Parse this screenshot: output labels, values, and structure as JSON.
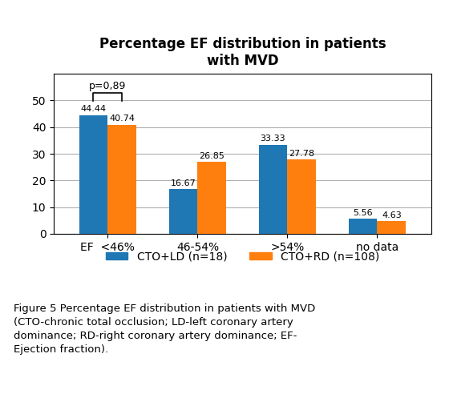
{
  "chart_data": {
    "type": "bar",
    "title": "Percentage EF distribution in patients\nwith MVD",
    "categories": [
      "EF  <46%",
      "46-54%",
      ">54%",
      "no data"
    ],
    "series": [
      {
        "name": "CTO+LD (n=18)",
        "values": [
          44.44,
          16.67,
          33.33,
          5.56
        ]
      },
      {
        "name": "CTO+RD (n=108)",
        "values": [
          40.74,
          26.85,
          27.78,
          4.63
        ]
      }
    ],
    "ylim": [
      0,
      60
    ],
    "yticks": [
      0,
      10,
      20,
      30,
      40,
      50
    ],
    "grid": true,
    "legend": "lower center",
    "data_labels": true,
    "annotations": [
      {
        "text": "p=0,89",
        "category": "EF  <46%"
      }
    ],
    "caption": "Figure 5 Percentage EF distribution in patients with MVD\n(CTO-chronic total occlusion; LD-left coronary artery\ndominance; RD-right coronary artery dominance; EF-\nEjection fraction)."
  }
}
